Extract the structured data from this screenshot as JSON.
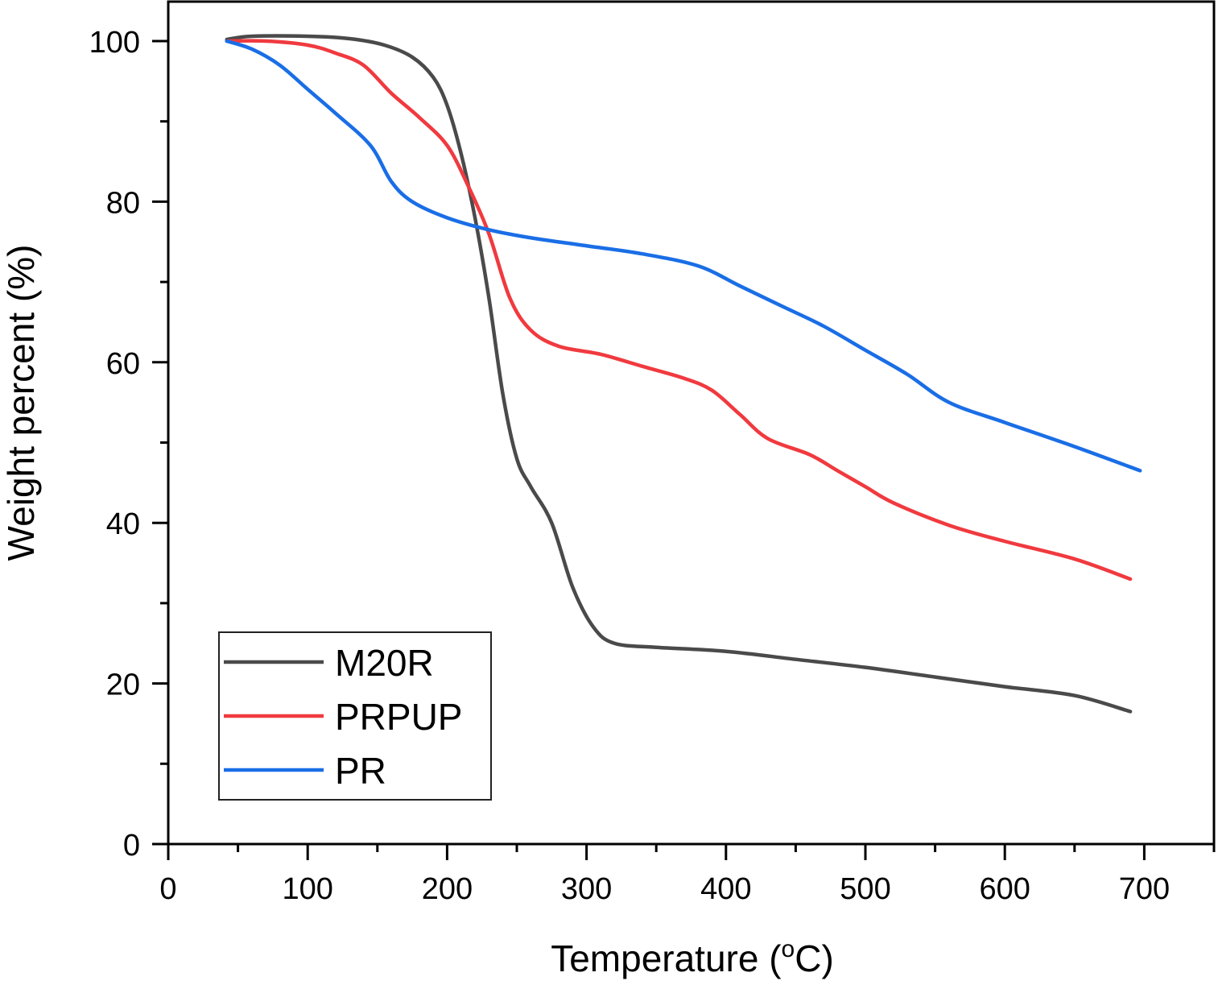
{
  "chart_data": {
    "type": "line",
    "title": "",
    "xlabel": "Temperature (",
    "xlabel_sup": "o",
    "xlabel_suffix": "C)",
    "ylabel": "Weight percent (%)",
    "xlim": [
      0,
      750
    ],
    "ylim": [
      0,
      105
    ],
    "x_major_ticks": [
      0,
      100,
      200,
      300,
      400,
      500,
      600,
      700
    ],
    "x_minor_ticks": [
      50,
      150,
      250,
      350,
      450,
      550,
      650,
      750
    ],
    "y_major_ticks": [
      0,
      20,
      40,
      60,
      80,
      100
    ],
    "y_minor_ticks": [
      10,
      30,
      50,
      70,
      90
    ],
    "grid": false,
    "legend_position": "bottom-left",
    "series": [
      {
        "name": "M20R",
        "color": "#4a4a4a",
        "x": [
          42,
          60,
          100,
          130,
          155,
          175,
          190,
          200,
          210,
          220,
          230,
          240,
          250,
          260,
          275,
          290,
          305,
          320,
          350,
          400,
          450,
          500,
          550,
          600,
          650,
          690
        ],
        "y": [
          100.2,
          100.6,
          100.6,
          100.3,
          99.5,
          98,
          95.5,
          92,
          86,
          78,
          68,
          56,
          48,
          44.5,
          40,
          32,
          27,
          25,
          24.5,
          24,
          23,
          22,
          20.8,
          19.6,
          18.5,
          16.5
        ]
      },
      {
        "name": "PRPUP",
        "color": "#f03a3f",
        "x": [
          42,
          70,
          100,
          120,
          140,
          160,
          180,
          200,
          215,
          230,
          245,
          260,
          280,
          310,
          340,
          370,
          390,
          410,
          430,
          460,
          480,
          500,
          520,
          560,
          600,
          650,
          690
        ],
        "y": [
          100,
          100,
          99.5,
          98.5,
          97,
          93.5,
          90.5,
          87,
          82,
          76,
          68,
          64,
          62,
          61,
          59.5,
          58,
          56.5,
          53.5,
          50.5,
          48.5,
          46.5,
          44.5,
          42.5,
          39.7,
          37.7,
          35.5,
          33
        ]
      },
      {
        "name": "PR",
        "color": "#1a6ee6",
        "x": [
          42,
          60,
          80,
          100,
          120,
          145,
          160,
          175,
          200,
          230,
          260,
          300,
          340,
          380,
          410,
          440,
          470,
          500,
          530,
          560,
          600,
          650,
          697
        ],
        "y": [
          100,
          99,
          97,
          94,
          91,
          87,
          82.5,
          80,
          78,
          76.5,
          75.5,
          74.5,
          73.5,
          72,
          69.5,
          67,
          64.5,
          61.5,
          58.5,
          55,
          52.5,
          49.5,
          46.5
        ]
      }
    ]
  }
}
